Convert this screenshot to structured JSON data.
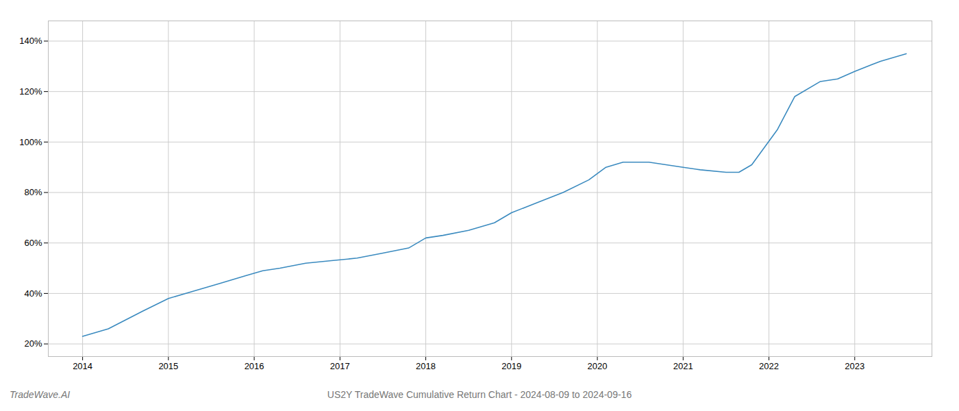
{
  "chart_data": {
    "type": "line",
    "title": "US2Y TradeWave Cumulative Return Chart - 2024-08-09 to 2024-09-16",
    "annotations": [
      "TradeWave.AI"
    ],
    "x": [
      2014.0,
      2014.3,
      2014.7,
      2015.0,
      2015.3,
      2015.6,
      2015.9,
      2016.1,
      2016.3,
      2016.6,
      2016.9,
      2017.2,
      2017.5,
      2017.8,
      2018.0,
      2018.2,
      2018.5,
      2018.8,
      2019.0,
      2019.3,
      2019.6,
      2019.9,
      2020.1,
      2020.3,
      2020.6,
      2020.8,
      2021.0,
      2021.2,
      2021.5,
      2021.65,
      2021.8,
      2022.1,
      2022.3,
      2022.6,
      2022.8,
      2023.0,
      2023.3,
      2023.6
    ],
    "values": [
      23,
      26,
      33,
      38,
      41,
      44,
      47,
      49,
      50,
      52,
      53,
      54,
      56,
      58,
      62,
      63,
      65,
      68,
      72,
      76,
      80,
      85,
      90,
      92,
      92,
      91,
      90,
      89,
      88,
      88,
      91,
      105,
      118,
      124,
      125,
      128,
      132,
      135
    ],
    "color": "#3a8abf",
    "xlim": [
      2013.6,
      2023.9
    ],
    "ylim": [
      15,
      148
    ],
    "xticks": [
      2014,
      2015,
      2016,
      2017,
      2018,
      2019,
      2020,
      2021,
      2022,
      2023
    ],
    "yticks": [
      {
        "value": 20,
        "label": "20%"
      },
      {
        "value": 40,
        "label": "40%"
      },
      {
        "value": 60,
        "label": "60%"
      },
      {
        "value": 80,
        "label": "80%"
      },
      {
        "value": 100,
        "label": "100%"
      },
      {
        "value": 120,
        "label": "120%"
      },
      {
        "value": 140,
        "label": "140%"
      }
    ],
    "grid": true
  }
}
